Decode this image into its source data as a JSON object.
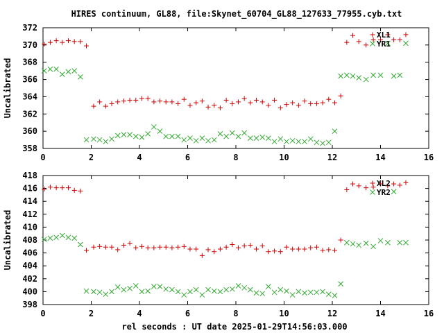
{
  "title": "HIRES continuum, GL88, file:Skynet_60704_GL88_127633_77955.cyb.txt",
  "xlabel": "rel seconds : UT date 2025-01-29T14:56:03.000",
  "colors": {
    "series_red": "#cc0000",
    "series_green": "#33aa33",
    "axis": "#000000"
  },
  "chart_data": [
    {
      "type": "scatter",
      "title": "HIRES continuum, GL88, file:Skynet_60704_GL88_127633_77955.cyb.txt",
      "xlabel": "",
      "ylabel": "Uncalibrated",
      "xlim": [
        0,
        16
      ],
      "ylim": [
        358,
        372
      ],
      "xticks": [
        0,
        2,
        4,
        6,
        8,
        10,
        12,
        14,
        16
      ],
      "yticks": [
        358,
        360,
        362,
        364,
        366,
        368,
        370,
        372
      ],
      "grid": false,
      "legend_position": "top-right",
      "series": [
        {
          "name": "XL1",
          "marker": "plus",
          "color": "#cc0000",
          "x": [
            0.05,
            0.3,
            0.55,
            0.8,
            1.05,
            1.3,
            1.55,
            1.8,
            2.1,
            2.35,
            2.6,
            2.85,
            3.1,
            3.35,
            3.6,
            3.85,
            4.1,
            4.35,
            4.6,
            4.85,
            5.1,
            5.35,
            5.6,
            5.85,
            6.1,
            6.35,
            6.6,
            6.85,
            7.1,
            7.35,
            7.6,
            7.85,
            8.1,
            8.35,
            8.6,
            8.85,
            9.1,
            9.35,
            9.6,
            9.85,
            10.1,
            10.35,
            10.6,
            10.85,
            11.1,
            11.35,
            11.6,
            11.85,
            12.1,
            12.35,
            12.6,
            12.85,
            13.1,
            13.4,
            13.7,
            14.0,
            14.3,
            14.55,
            14.8,
            15.05
          ],
          "y": [
            370.1,
            370.3,
            370.5,
            370.3,
            370.5,
            370.4,
            370.4,
            369.9,
            362.9,
            363.4,
            362.9,
            363.2,
            363.4,
            363.5,
            363.6,
            363.6,
            363.8,
            363.8,
            363.4,
            363.5,
            363.4,
            363.4,
            363.2,
            363.7,
            363.0,
            363.3,
            363.5,
            362.8,
            363.0,
            362.7,
            363.6,
            363.2,
            363.4,
            363.8,
            363.3,
            363.6,
            363.4,
            363.0,
            363.6,
            362.7,
            363.1,
            363.3,
            363.0,
            363.5,
            363.2,
            363.2,
            363.3,
            363.7,
            363.3,
            364.1,
            370.3,
            371.1,
            370.4,
            370.0,
            370.6,
            370.6,
            371.2,
            370.6,
            370.6,
            371.2
          ]
        },
        {
          "name": "YR1",
          "marker": "cross",
          "color": "#33aa33",
          "x": [
            0.05,
            0.3,
            0.55,
            0.8,
            1.05,
            1.3,
            1.55,
            1.8,
            2.1,
            2.35,
            2.6,
            2.85,
            3.1,
            3.35,
            3.6,
            3.85,
            4.1,
            4.35,
            4.6,
            4.85,
            5.1,
            5.35,
            5.6,
            5.85,
            6.1,
            6.35,
            6.6,
            6.85,
            7.1,
            7.35,
            7.6,
            7.85,
            8.1,
            8.35,
            8.6,
            8.85,
            9.1,
            9.35,
            9.6,
            9.85,
            10.1,
            10.35,
            10.6,
            10.85,
            11.1,
            11.35,
            11.6,
            11.85,
            12.1,
            12.35,
            12.6,
            12.85,
            13.1,
            13.4,
            13.7,
            14.0,
            14.3,
            14.55,
            14.8,
            15.05
          ],
          "y": [
            367.0,
            367.2,
            367.2,
            366.6,
            366.9,
            367.0,
            366.3,
            359.0,
            359.1,
            359.0,
            358.8,
            359.1,
            359.5,
            359.6,
            359.6,
            359.4,
            359.3,
            359.7,
            360.5,
            360.0,
            359.4,
            359.4,
            359.4,
            359.0,
            359.2,
            358.9,
            359.2,
            358.9,
            359.0,
            359.7,
            359.4,
            359.8,
            359.4,
            359.8,
            359.2,
            359.2,
            359.3,
            359.2,
            358.8,
            359.1,
            358.8,
            358.9,
            358.8,
            358.8,
            359.1,
            358.7,
            358.6,
            358.7,
            360.0,
            366.4,
            366.5,
            366.4,
            366.2,
            366.0,
            366.5,
            366.5,
            370.2,
            366.4,
            366.5,
            370.2
          ]
        }
      ]
    },
    {
      "type": "scatter",
      "title": "",
      "xlabel": "rel seconds : UT date 2025-01-29T14:56:03.000",
      "ylabel": "Uncalibrated",
      "xlim": [
        0,
        16
      ],
      "ylim": [
        398,
        418
      ],
      "xticks": [
        0,
        2,
        4,
        6,
        8,
        10,
        12,
        14,
        16
      ],
      "yticks": [
        398,
        400,
        402,
        404,
        406,
        408,
        410,
        412,
        414,
        416,
        418
      ],
      "grid": false,
      "legend_position": "top-right",
      "series": [
        {
          "name": "XL2",
          "marker": "plus",
          "color": "#cc0000",
          "x": [
            0.05,
            0.3,
            0.55,
            0.8,
            1.05,
            1.3,
            1.55,
            1.8,
            2.1,
            2.35,
            2.6,
            2.85,
            3.1,
            3.35,
            3.6,
            3.85,
            4.1,
            4.35,
            4.6,
            4.85,
            5.1,
            5.35,
            5.6,
            5.85,
            6.1,
            6.35,
            6.6,
            6.85,
            7.1,
            7.35,
            7.6,
            7.85,
            8.1,
            8.35,
            8.6,
            8.85,
            9.1,
            9.35,
            9.6,
            9.85,
            10.1,
            10.35,
            10.6,
            10.85,
            11.1,
            11.35,
            11.6,
            11.85,
            12.1,
            12.35,
            12.6,
            12.85,
            13.1,
            13.4,
            13.7,
            14.0,
            14.3,
            14.55,
            14.8,
            15.05
          ],
          "y": [
            415.9,
            416.2,
            416.1,
            416.1,
            416.1,
            415.7,
            415.6,
            406.4,
            406.9,
            407.0,
            406.9,
            406.9,
            406.5,
            407.2,
            407.5,
            406.8,
            407.0,
            406.8,
            406.8,
            406.9,
            406.9,
            406.8,
            406.9,
            407.0,
            406.6,
            406.6,
            405.6,
            406.5,
            406.2,
            406.6,
            406.9,
            407.3,
            406.8,
            407.1,
            407.2,
            406.6,
            407.1,
            406.2,
            406.3,
            406.2,
            406.9,
            406.6,
            406.6,
            406.6,
            406.8,
            406.9,
            406.4,
            406.5,
            406.4,
            408.0,
            415.8,
            416.7,
            416.4,
            416.1,
            416.2,
            416.7,
            416.4,
            416.7,
            416.5,
            416.9
          ]
        },
        {
          "name": "YR2",
          "marker": "cross",
          "color": "#33aa33",
          "x": [
            0.05,
            0.3,
            0.55,
            0.8,
            1.05,
            1.3,
            1.55,
            1.8,
            2.1,
            2.35,
            2.6,
            2.85,
            3.1,
            3.35,
            3.6,
            3.85,
            4.1,
            4.35,
            4.6,
            4.85,
            5.1,
            5.35,
            5.6,
            5.85,
            6.1,
            6.35,
            6.6,
            6.85,
            7.1,
            7.35,
            7.6,
            7.85,
            8.1,
            8.35,
            8.6,
            8.85,
            9.1,
            9.35,
            9.6,
            9.85,
            10.1,
            10.35,
            10.6,
            10.85,
            11.1,
            11.35,
            11.6,
            11.85,
            12.1,
            12.35,
            12.6,
            12.85,
            13.1,
            13.4,
            13.7,
            14.0,
            14.3,
            14.55,
            14.8,
            15.05
          ],
          "y": [
            408.1,
            408.3,
            408.4,
            408.7,
            408.4,
            408.3,
            407.3,
            400.1,
            400.0,
            399.9,
            399.6,
            400.0,
            400.7,
            400.3,
            400.5,
            400.9,
            400.0,
            400.1,
            400.8,
            400.8,
            400.4,
            400.3,
            400.0,
            399.5,
            400.0,
            400.3,
            399.5,
            400.3,
            400.1,
            400.0,
            400.3,
            400.4,
            400.9,
            400.6,
            400.3,
            399.8,
            399.7,
            400.8,
            399.9,
            400.3,
            400.1,
            399.5,
            400.0,
            399.8,
            399.9,
            399.9,
            400.0,
            399.6,
            399.4,
            401.2,
            407.6,
            407.4,
            407.2,
            407.5,
            407.0,
            407.9,
            407.6,
            415.5,
            407.6,
            407.6
          ]
        }
      ]
    }
  ]
}
